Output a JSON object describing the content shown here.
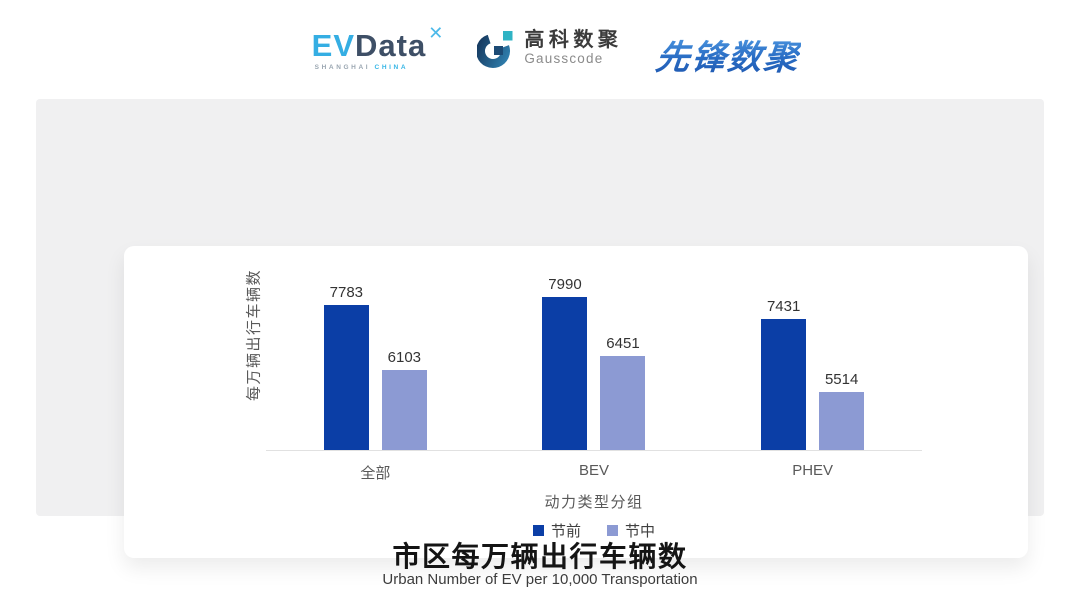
{
  "header": {
    "evdata": {
      "ev": "EV",
      "data": "Data",
      "x_mark": "✕",
      "sub_left": "SHANGHAI",
      "sub_right": "CHINA"
    },
    "gausscode": {
      "cn": "高科数聚",
      "en": "Gausscode"
    },
    "pioneer": {
      "text": "先锋数聚"
    }
  },
  "chart_data": {
    "type": "bar",
    "categories": [
      "全部",
      "BEV",
      "PHEV"
    ],
    "series": [
      {
        "name": "节前",
        "color": "#0B3EA6",
        "values": [
          7783,
          7990,
          7431
        ]
      },
      {
        "name": "节中",
        "color": "#8C9AD3",
        "values": [
          6103,
          6451,
          5514
        ]
      }
    ],
    "xlabel": "动力类型分组",
    "ylabel": "每万辆出行车辆数",
    "ylim": [
      4000,
      9330
    ],
    "grid": false,
    "legend_position": "bottom",
    "value_labels": true
  },
  "footer": {
    "title": "市区每万辆出行车辆数",
    "subtitle": "Urban Number of EV per 10,000 Transportation"
  },
  "colors": {
    "panel_bg": "#f0f0f1",
    "card_bg": "#ffffff",
    "axis_line": "#e1e1e1",
    "brand_light_blue": "#35aee3",
    "brand_navy": "#3e4f66",
    "gausscode_teal": "#2fb3c4",
    "pioneer_blue": "#2a6ec5"
  }
}
